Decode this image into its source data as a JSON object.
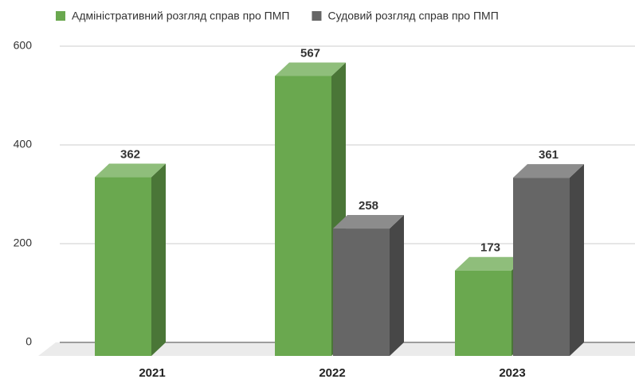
{
  "chart_data": {
    "type": "bar3d",
    "categories": [
      "2021",
      "2022",
      "2023"
    ],
    "series": [
      {
        "name": "Адміністративний розгляд справ про ПМП",
        "color": "#6aa84f",
        "values": [
          362,
          567,
          173
        ]
      },
      {
        "name": "Судовий розгляд справ про ПМП",
        "color": "#666666",
        "values": [
          null,
          258,
          361
        ]
      }
    ],
    "ylim": [
      0,
      600
    ],
    "yticks": [
      0,
      200,
      400,
      600
    ],
    "grid": true,
    "legend": "top"
  }
}
